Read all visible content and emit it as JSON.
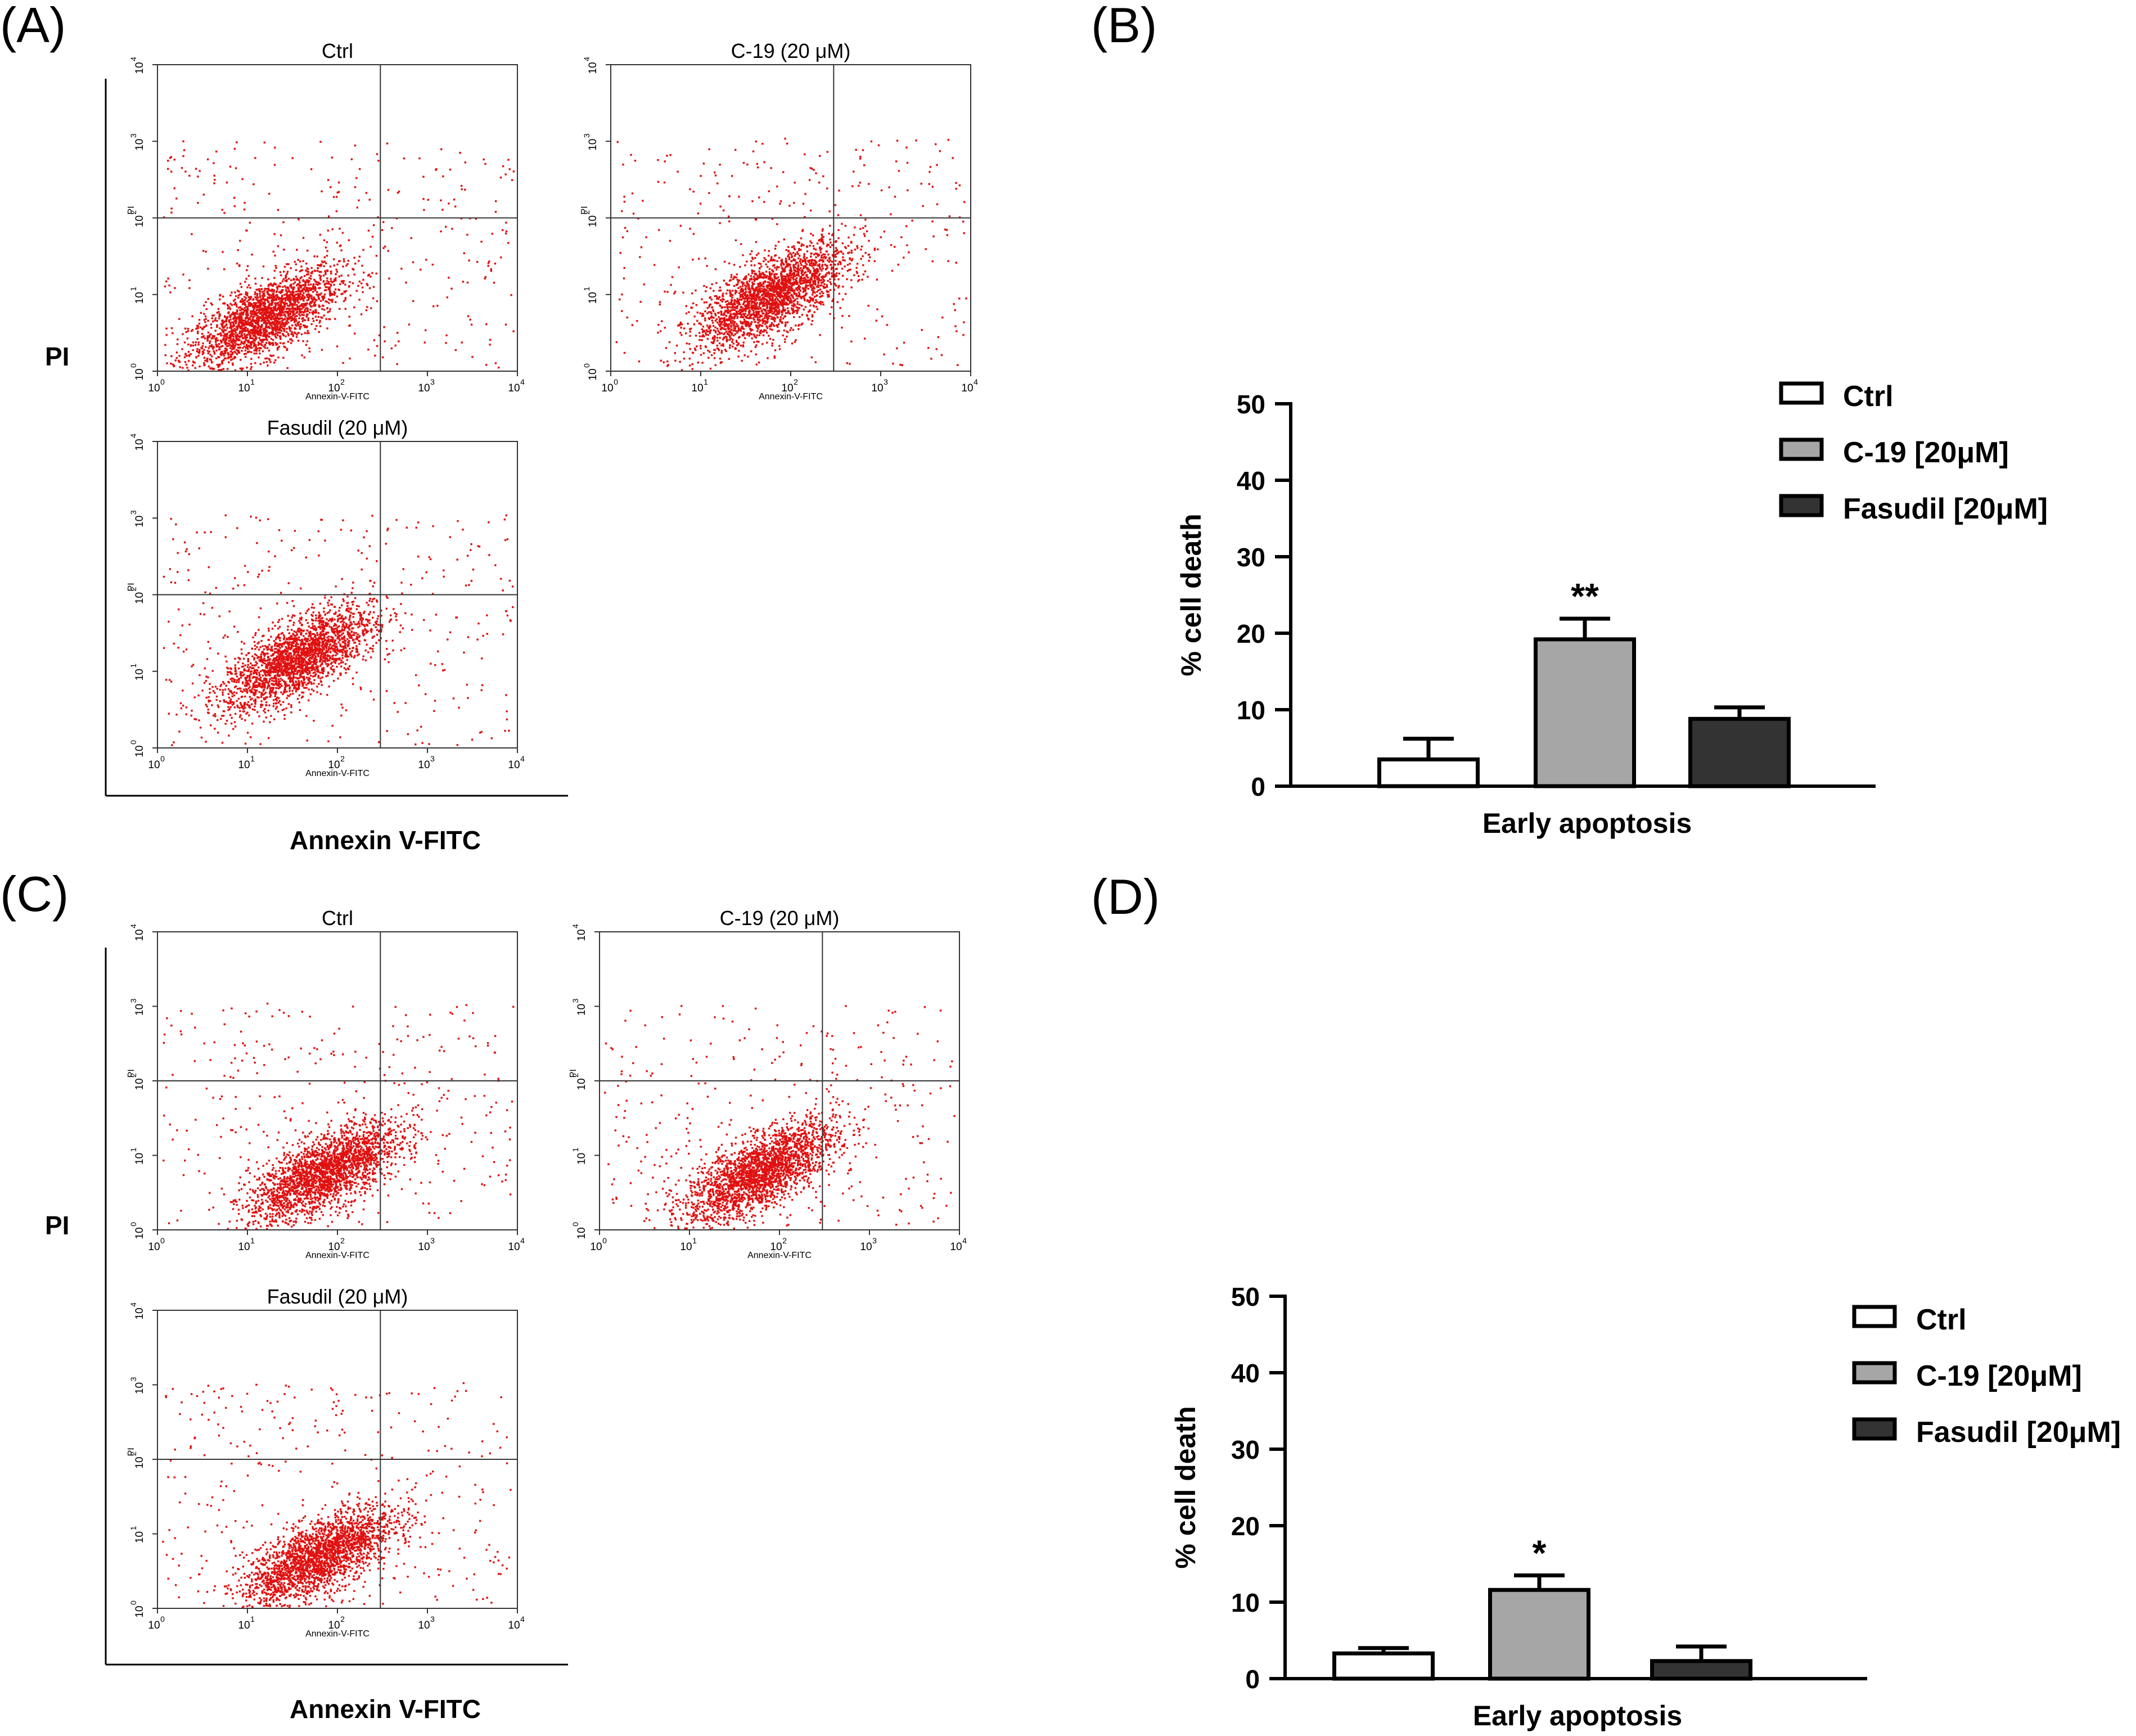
{
  "figure": {
    "panels": [
      {
        "id": "A",
        "label": "(A)",
        "y_title": "PI",
        "x_title": "Annexin V-FITC",
        "plots": [
          {
            "title": "Ctrl",
            "axis_x": "Annexin-V-FITC",
            "axis_y": "PI"
          },
          {
            "title": "C-19 (20 μM)",
            "axis_x": "Annexin-V-FITC",
            "axis_y": "PI"
          },
          {
            "title": "Fasudil (20 μM)",
            "axis_x": "Annexin-V-FITC",
            "axis_y": "PI"
          }
        ]
      },
      {
        "id": "C",
        "label": "(C)",
        "y_title": "PI",
        "x_title": "Annexin V-FITC",
        "plots": [
          {
            "title": "Ctrl",
            "axis_x": "Annexin-V-FITC",
            "axis_y": "PI"
          },
          {
            "title": "C-19 (20 μM)",
            "axis_x": "Annexin-V-FITC",
            "axis_y": "PI"
          },
          {
            "title": "Fasudil (20 μM)",
            "axis_x": "Annexin-V-FITC",
            "axis_y": "PI"
          }
        ]
      },
      {
        "id": "B",
        "label": "(B)"
      },
      {
        "id": "D",
        "label": "(D)"
      }
    ],
    "flow_scale": {
      "decade_ticks": [
        "10",
        "10",
        "10",
        "10",
        "10"
      ],
      "exponents": [
        "0",
        "1",
        "2",
        "3",
        "4"
      ]
    }
  },
  "chart_data": [
    {
      "panel": "A",
      "type": "scatter",
      "x_scale": "log",
      "y_scale": "log",
      "xlim": [
        1,
        10000
      ],
      "ylim": [
        1,
        10000
      ],
      "xlabel": "Annexin-V-FITC",
      "ylabel": "PI",
      "gates": {
        "x": 300,
        "y": 100
      },
      "plots": [
        {
          "title": "Ctrl",
          "color": "#e01010",
          "cluster": {
            "x_center": 15,
            "y_center": 5
          }
        },
        {
          "title": "C-19 (20 μM)",
          "color": "#e01010",
          "cluster": {
            "x_center": 60,
            "y_center": 10
          }
        },
        {
          "title": "Fasudil (20 μM)",
          "color": "#e01010",
          "cluster": {
            "x_center": 35,
            "y_center": 15
          }
        }
      ]
    },
    {
      "panel": "B",
      "type": "bar",
      "categories": [
        "Early apoptosis"
      ],
      "series": [
        {
          "name": "Ctrl",
          "values": [
            3.5
          ],
          "error": [
            2.7
          ],
          "color": "#ffffff"
        },
        {
          "name": "C-19 [20μM]",
          "values": [
            19.2
          ],
          "error": [
            2.7
          ],
          "color": "#a6a6a6",
          "annotation": "**"
        },
        {
          "name": "Fasudil [20μM]",
          "values": [
            8.8
          ],
          "error": [
            1.5
          ],
          "color": "#333333"
        }
      ],
      "xlabel": "Early apoptosis",
      "ylabel": "% cell death",
      "ylim": [
        0,
        50
      ],
      "yticks": [
        "0",
        "10",
        "20",
        "30",
        "40",
        "50"
      ],
      "legend": "top-right"
    },
    {
      "panel": "C",
      "type": "scatter",
      "x_scale": "log",
      "y_scale": "log",
      "xlim": [
        1,
        10000
      ],
      "ylim": [
        1,
        10000
      ],
      "xlabel": "Annexin-V-FITC",
      "ylabel": "PI",
      "gates": {
        "x": 300,
        "y": 100
      },
      "plots": [
        {
          "title": "Ctrl",
          "color": "#e01010",
          "cluster": {
            "x_center": 70,
            "y_center": 6
          }
        },
        {
          "title": "C-19 (20 μM)",
          "color": "#e01010",
          "cluster": {
            "x_center": 60,
            "y_center": 6
          }
        },
        {
          "title": "Fasudil (20 μM)",
          "color": "#e01010",
          "cluster": {
            "x_center": 60,
            "y_center": 5
          }
        }
      ]
    },
    {
      "panel": "D",
      "type": "bar",
      "categories": [
        "Early apoptosis"
      ],
      "series": [
        {
          "name": "Ctrl",
          "values": [
            3.3
          ],
          "error": [
            0.7
          ],
          "color": "#ffffff"
        },
        {
          "name": "C-19 [20μM]",
          "values": [
            11.6
          ],
          "error": [
            1.9
          ],
          "color": "#a6a6a6",
          "annotation": "*"
        },
        {
          "name": "Fasudil [20μM]",
          "values": [
            2.3
          ],
          "error": [
            1.9
          ],
          "color": "#333333"
        }
      ],
      "xlabel": "Early apoptosis",
      "ylabel": "% cell death",
      "ylim": [
        0,
        50
      ],
      "yticks": [
        "0",
        "10",
        "20",
        "30",
        "40",
        "50"
      ],
      "legend": "top-right"
    }
  ]
}
